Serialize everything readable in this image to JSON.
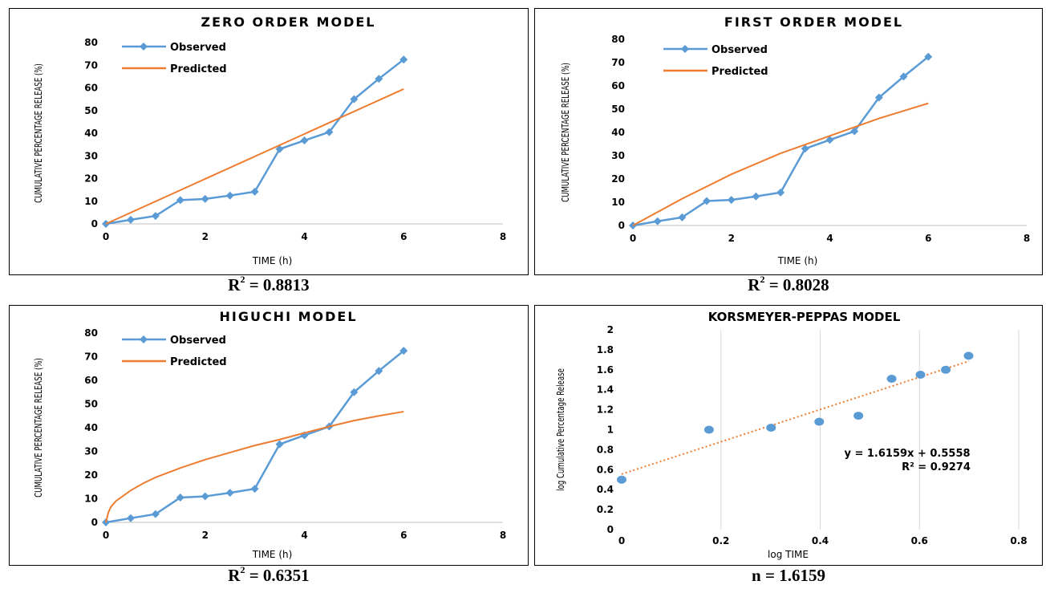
{
  "charts": [
    {
      "title": "ZERO ORDER MODEL",
      "caption_prefix": "R",
      "caption_sup": "2",
      "caption_value": " = 0.8813"
    },
    {
      "title": "FIRST ORDER MODEL",
      "caption_prefix": "R",
      "caption_sup": "2",
      "caption_value": " = 0.8028"
    },
    {
      "title": "HIGUCHI MODEL",
      "caption_prefix": "R",
      "caption_sup": "2",
      "caption_value": " = 0.6351"
    },
    {
      "title": "KORSMEYER-PEPPAS MODEL",
      "caption_prefix": "",
      "caption_sup": "",
      "caption_value": "n = 1.6159"
    }
  ],
  "chart_data": [
    {
      "type": "line",
      "title": "ZERO ORDER MODEL",
      "xlabel": "TIME (h)",
      "ylabel": "CUMULATIVE PERCENTAGE RELEASE (%)",
      "xlim": [
        0,
        8
      ],
      "ylim": [
        0,
        80
      ],
      "xticks": [
        "0",
        "2",
        "4",
        "6",
        "8"
      ],
      "yticks": [
        "0",
        "10",
        "20",
        "30",
        "40",
        "50",
        "60",
        "70",
        "80"
      ],
      "legend": "top-left",
      "series": [
        {
          "name": "Observed",
          "color": "#5b9bd5",
          "markers": true,
          "x": [
            0,
            0.5,
            1,
            1.5,
            2,
            2.5,
            3,
            3.5,
            4,
            4.5,
            5,
            5.5,
            6
          ],
          "y": [
            0,
            1.8,
            3.5,
            10.5,
            11,
            12.5,
            14.2,
            33,
            36.8,
            40.5,
            55,
            64,
            72.5
          ]
        },
        {
          "name": "Predicted",
          "color": "#ed7d31",
          "markers": false,
          "x": [
            0,
            6
          ],
          "y": [
            0,
            59.5
          ]
        }
      ]
    },
    {
      "type": "line",
      "title": "FIRST ORDER MODEL",
      "xlabel": "TIME (h)",
      "ylabel": "CUMULATIVE PERCENTAGE RELEASE (%)",
      "xlim": [
        0,
        8
      ],
      "ylim": [
        0,
        80
      ],
      "xticks": [
        "0",
        "2",
        "4",
        "6",
        "8"
      ],
      "yticks": [
        "0",
        "10",
        "20",
        "30",
        "40",
        "50",
        "60",
        "70",
        "80"
      ],
      "legend": "top-left",
      "series": [
        {
          "name": "Observed",
          "color": "#5b9bd5",
          "markers": true,
          "x": [
            0,
            0.5,
            1,
            1.5,
            2,
            2.5,
            3,
            3.5,
            4,
            4.5,
            5,
            5.5,
            6
          ],
          "y": [
            0,
            1.8,
            3.5,
            10.5,
            11,
            12.5,
            14.2,
            33,
            36.8,
            40.5,
            55,
            64,
            72.5
          ]
        },
        {
          "name": "Predicted",
          "color": "#ed7d31",
          "markers": false,
          "x": [
            0,
            1,
            2,
            3,
            4,
            5,
            6
          ],
          "y": [
            0,
            11.5,
            22,
            31,
            38.5,
            46,
            52.5
          ]
        }
      ]
    },
    {
      "type": "line",
      "title": "HIGUCHI MODEL",
      "xlabel": "TIME (h)",
      "ylabel": "CUMULATIVE PERCENTAGE RELEASE (%)",
      "xlim": [
        0,
        8
      ],
      "ylim": [
        0,
        80
      ],
      "xticks": [
        "0",
        "2",
        "4",
        "6",
        "8"
      ],
      "yticks": [
        "0",
        "10",
        "20",
        "30",
        "40",
        "50",
        "60",
        "70",
        "80"
      ],
      "legend": "top-left",
      "series": [
        {
          "name": "Observed",
          "color": "#5b9bd5",
          "markers": true,
          "x": [
            0,
            0.5,
            1,
            1.5,
            2,
            2.5,
            3,
            3.5,
            4,
            4.5,
            5,
            5.5,
            6
          ],
          "y": [
            0,
            1.8,
            3.5,
            10.5,
            11,
            12.5,
            14.2,
            33,
            36.8,
            40.5,
            55,
            64,
            72.5
          ]
        },
        {
          "name": "Predicted",
          "color": "#ed7d31",
          "markers": false,
          "x": [
            0,
            0.05,
            0.1,
            0.2,
            0.3,
            0.5,
            0.75,
            1,
            1.5,
            2,
            2.5,
            3,
            3.5,
            4,
            4.5,
            5,
            5.5,
            6
          ],
          "y": [
            0,
            4.2,
            6.5,
            9,
            10.5,
            13.5,
            16.5,
            19,
            23,
            26.5,
            29.5,
            32.5,
            35,
            37.8,
            40.5,
            43,
            45,
            46.8
          ]
        }
      ]
    },
    {
      "type": "scatter",
      "title": "KORSMEYER-PEPPAS MODEL",
      "xlabel": "log TIME",
      "ylabel": "log Cumulative Percentage Release",
      "xlim": [
        0,
        0.8
      ],
      "ylim": [
        0,
        2
      ],
      "xticks": [
        "0",
        "0.2",
        "0.4",
        "0.6",
        "0.8"
      ],
      "yticks": [
        "0",
        "0.2",
        "0.4",
        "0.6",
        "0.8",
        "1",
        "1.2",
        "1.4",
        "1.6",
        "1.8",
        "2"
      ],
      "grid": "vertical",
      "points": {
        "color": "#5b9bd5",
        "x": [
          0,
          0.176,
          0.301,
          0.398,
          0.477,
          0.544,
          0.602,
          0.653,
          0.699
        ],
        "y": [
          0.5,
          1.0,
          1.02,
          1.08,
          1.14,
          1.51,
          1.55,
          1.6,
          1.74
        ]
      },
      "trendline": {
        "color": "#ed7d31",
        "slope": 1.6159,
        "intercept": 0.5558,
        "x": [
          0,
          0.7
        ]
      },
      "equation": "y = 1.6159x + 0.5558",
      "r2_label": "R² = 0.9274"
    }
  ]
}
